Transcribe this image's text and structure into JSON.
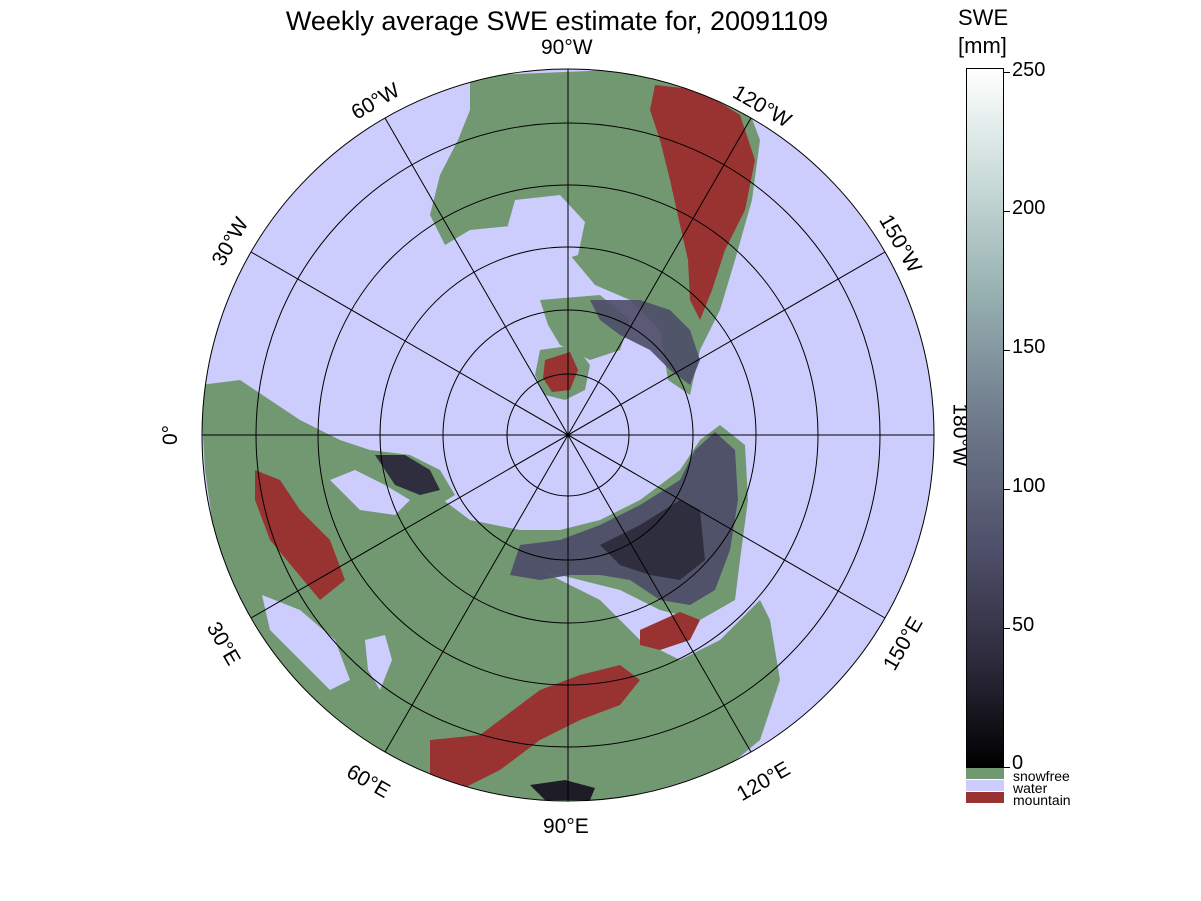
{
  "title": "Weekly average SWE estimate for, 20091109",
  "map_labels": {
    "lon_90W": "90°W",
    "lon_60W": "60°W",
    "lon_30W": "30°W",
    "lon_0": "0°",
    "lon_30E": "30°E",
    "lon_60E": "60°E",
    "lon_90E": "90°E",
    "lon_120E": "120°E",
    "lon_150E": "150°E",
    "lon_180W": "180°W",
    "lon_150W": "150°W",
    "lon_120W": "120°W"
  },
  "colorbar": {
    "title_line1": "SWE",
    "title_line2": "[mm]",
    "ticks": [
      "0",
      "50",
      "100",
      "150",
      "200",
      "250"
    ],
    "range": [
      0,
      250
    ],
    "categories": [
      {
        "label": "snowfree",
        "color": "#729872"
      },
      {
        "label": "water",
        "color": "#cccdfc"
      },
      {
        "label": "mountain",
        "color": "#983331"
      }
    ]
  },
  "colors": {
    "snowfree": "#729872",
    "water": "#cccdfc",
    "mountain": "#983331",
    "snow_low": "#1e1c26",
    "snow_mid": "#4e4e68"
  }
}
